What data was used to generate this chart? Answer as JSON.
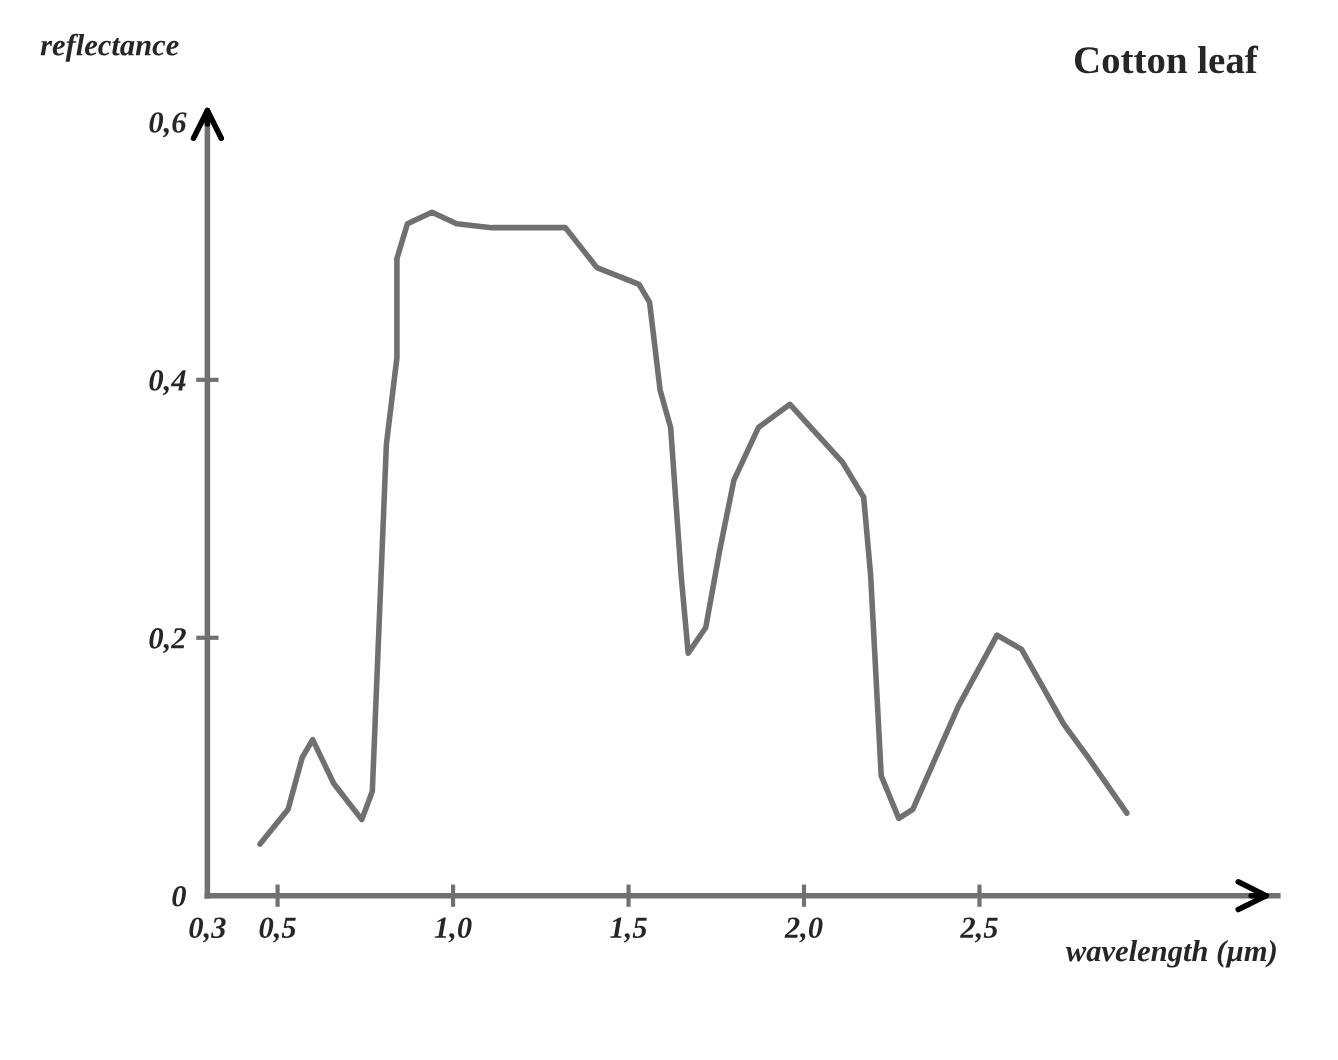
{
  "chart_data": {
    "type": "line",
    "title": "Cotton leaf",
    "xlabel": "wavelength (µm)",
    "ylabel": "reflectance",
    "x": [
      0.45,
      0.53,
      0.57,
      0.6,
      0.66,
      0.74,
      0.77,
      0.79,
      0.81,
      0.84,
      0.84,
      0.87,
      0.94,
      1.01,
      1.11,
      1.32,
      1.41,
      1.53,
      1.56,
      1.59,
      1.62,
      1.65,
      1.67,
      1.72,
      1.76,
      1.8,
      1.87,
      1.96,
      2.02,
      2.11,
      2.17,
      2.19,
      2.22,
      2.27,
      2.31,
      2.44,
      2.55,
      2.62,
      2.74,
      2.81,
      2.92
    ],
    "series": [
      {
        "color": "#707070",
        "values": [
          0.04,
          0.067,
          0.107,
          0.121,
          0.087,
          0.059,
          0.081,
          0.215,
          0.35,
          0.417,
          0.494,
          0.521,
          0.53,
          0.521,
          0.518,
          0.518,
          0.487,
          0.474,
          0.46,
          0.392,
          0.363,
          0.248,
          0.188,
          0.208,
          0.268,
          0.322,
          0.363,
          0.381,
          0.363,
          0.336,
          0.309,
          0.248,
          0.093,
          0.06,
          0.067,
          0.147,
          0.202,
          0.191,
          0.133,
          0.107,
          0.064
        ]
      }
    ],
    "xlim": [
      0.3,
      3.35
    ],
    "ylim": [
      0,
      0.6
    ],
    "xticks": [
      {
        "value": 0.3,
        "label": "0,3"
      },
      {
        "value": 0.5,
        "label": "0,5"
      },
      {
        "value": 1.0,
        "label": "1,0"
      },
      {
        "value": 1.5,
        "label": "1,5"
      },
      {
        "value": 2.0,
        "label": "2,0"
      },
      {
        "value": 2.5,
        "label": "2,5"
      }
    ],
    "yticks": [
      {
        "value": 0,
        "label": "0"
      },
      {
        "value": 0.2,
        "label": "0,2"
      },
      {
        "value": 0.4,
        "label": "0,4"
      },
      {
        "value": 0.6,
        "label": "0,6"
      }
    ],
    "grid": false,
    "legend": false,
    "marker": "none",
    "line_style": "solid"
  }
}
